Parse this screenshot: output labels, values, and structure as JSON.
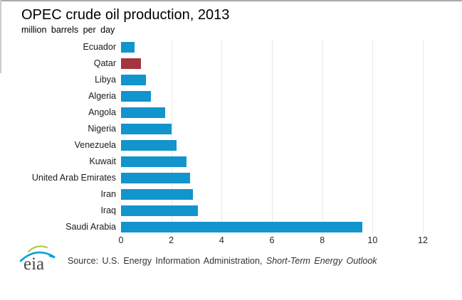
{
  "header": {
    "title": "OPEC crude oil production, 2013",
    "subtitle": "million barrels per day"
  },
  "footer": {
    "logo_text": "eia",
    "source_prefix": "Source: U.S. Energy Information Administration, ",
    "source_publication": "Short-Term Energy Outlook"
  },
  "colors": {
    "bar": "#1294cd",
    "highlight_bar": "#a33440",
    "gridline": "#e8e8e8",
    "axis_text": "#262626",
    "title_text": "#000000",
    "source_text": "#333333",
    "top_edge": "#ababab",
    "left_edge": "#cccccc",
    "logo_text": "#4a4a4a",
    "logo_green": "#a6ce39",
    "logo_blue": "#00a0dc"
  },
  "chart_data": {
    "type": "bar",
    "orientation": "horizontal",
    "title": "OPEC crude oil production, 2013",
    "unit_label": "million barrels per day",
    "categories": [
      "Ecuador",
      "Qatar",
      "Libya",
      "Algeria",
      "Angola",
      "Nigeria",
      "Venezuela",
      "Kuwait",
      "United Arab Emirates",
      "Iran",
      "Iraq",
      "Saudi Arabia"
    ],
    "values": [
      0.55,
      0.8,
      1.0,
      1.2,
      1.75,
      2.0,
      2.2,
      2.6,
      2.75,
      2.85,
      3.05,
      9.6
    ],
    "highlight_category": "Qatar",
    "highlight_color": "#a33440",
    "bar_color": "#1294cd",
    "xlim": [
      0,
      12
    ],
    "xticks": [
      0,
      2,
      4,
      6,
      8,
      10,
      12
    ],
    "grid": true,
    "legend": false,
    "source": "U.S. Energy Information Administration, Short-Term Energy Outlook"
  }
}
